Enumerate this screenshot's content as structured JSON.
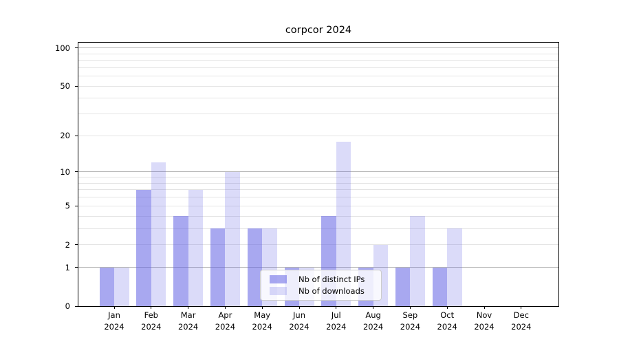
{
  "chart_data": {
    "type": "bar",
    "title": "corpcor 2024",
    "categories": [
      {
        "month": "Jan",
        "year": "2024"
      },
      {
        "month": "Feb",
        "year": "2024"
      },
      {
        "month": "Mar",
        "year": "2024"
      },
      {
        "month": "Apr",
        "year": "2024"
      },
      {
        "month": "May",
        "year": "2024"
      },
      {
        "month": "Jun",
        "year": "2024"
      },
      {
        "month": "Jul",
        "year": "2024"
      },
      {
        "month": "Aug",
        "year": "2024"
      },
      {
        "month": "Sep",
        "year": "2024"
      },
      {
        "month": "Oct",
        "year": "2024"
      },
      {
        "month": "Nov",
        "year": "2024"
      },
      {
        "month": "Dec",
        "year": "2024"
      }
    ],
    "series": [
      {
        "name": "Nb of distinct IPs",
        "color": "rgba(100,100,228,0.56)",
        "values": [
          1,
          7,
          4,
          3,
          3,
          1,
          4,
          1,
          1,
          1,
          0,
          0
        ]
      },
      {
        "name": "Nb of downloads",
        "color": "rgba(100,100,230,0.23)",
        "values": [
          1,
          12,
          7,
          10,
          3,
          1,
          18,
          2,
          4,
          3,
          0,
          0
        ]
      }
    ],
    "y_axis": {
      "scale": "log1p",
      "ylim": [
        0,
        110
      ],
      "tick_values": [
        100,
        50,
        20,
        10,
        5,
        2,
        1,
        0
      ],
      "tick_labels": [
        "100",
        "50",
        "20",
        "10",
        "5",
        "2",
        "1",
        "0"
      ],
      "major_gridlines": [
        1,
        10,
        100
      ],
      "minor_gridlines": [
        2,
        3,
        4,
        5,
        6,
        7,
        8,
        9,
        20,
        30,
        40,
        50,
        60,
        70,
        80,
        90
      ]
    },
    "legend_position": "lower center-right inside plot",
    "grid": "on",
    "xlabel": "",
    "ylabel": ""
  },
  "colors": {
    "background": "#ffffff",
    "spine": "#000000",
    "major_grid": "#b4b4b4",
    "minor_grid": "#e4e4e4",
    "text": "#000000",
    "legend_border": "#cccccc",
    "legend_background": "rgba(255,255,255,0.8)"
  }
}
